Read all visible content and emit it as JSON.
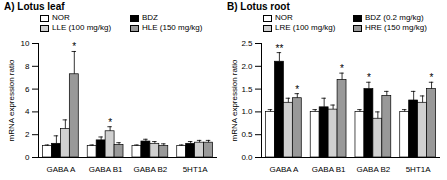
{
  "chart_data": [
    {
      "type": "bar",
      "title": "A) Lotus leaf",
      "y_label": "mRNA expression ratio",
      "categories": [
        "GABA A",
        "GABA B1",
        "GABA B2",
        "5HT1A"
      ],
      "series": [
        {
          "name": "NOR",
          "color": "#ffffff",
          "values": [
            1.0,
            1.0,
            1.0,
            1.0
          ],
          "errors": [
            0.1,
            0.1,
            0.1,
            0.1
          ]
        },
        {
          "name": "BDZ",
          "color": "#000000",
          "values": [
            1.2,
            1.5,
            1.4,
            1.2
          ],
          "errors": [
            0.7,
            0.3,
            0.2,
            0.2
          ]
        },
        {
          "name": "LLE (100 mg/kg)",
          "color": "#d0d0d0",
          "values": [
            2.5,
            2.3,
            1.2,
            1.3
          ],
          "errors": [
            0.8,
            0.4,
            0.2,
            0.2
          ]
        },
        {
          "name": "HLE (150 mg/kg)",
          "color": "#999999",
          "values": [
            7.3,
            1.1,
            1.0,
            1.3
          ],
          "errors": [
            2.0,
            0.2,
            0.2,
            0.2
          ]
        }
      ],
      "annotations": [
        {
          "text": "*",
          "category": "GABA A",
          "series": "HLE (150 mg/kg)"
        },
        {
          "text": "*",
          "category": "GABA B1",
          "series": "LLE (100 mg/kg)"
        }
      ],
      "ylim": [
        0,
        10
      ],
      "yticks": [
        0,
        2,
        4,
        6,
        8,
        10
      ],
      "legend": "top"
    },
    {
      "type": "bar",
      "title": "B) Lotus root",
      "y_label": "mRNA expression ratio",
      "categories": [
        "GABA A",
        "GABA B1",
        "GABA B2",
        "5HT1A"
      ],
      "series": [
        {
          "name": "NOR",
          "color": "#ffffff",
          "values": [
            1.0,
            1.0,
            1.0,
            1.0
          ],
          "errors": [
            0.05,
            0.05,
            0.05,
            0.05
          ]
        },
        {
          "name": "BDZ (0.2 mg/kg)",
          "color": "#000000",
          "values": [
            2.1,
            1.1,
            1.5,
            1.25
          ],
          "errors": [
            0.2,
            0.2,
            0.15,
            0.2
          ]
        },
        {
          "name": "LRE (100 mg/kg)",
          "color": "#d0d0d0",
          "values": [
            1.2,
            1.05,
            0.85,
            1.2
          ],
          "errors": [
            0.1,
            0.1,
            0.15,
            0.15
          ]
        },
        {
          "name": "HRE (150 mg/kg)",
          "color": "#999999",
          "values": [
            1.3,
            1.7,
            1.35,
            1.5
          ],
          "errors": [
            0.1,
            0.15,
            0.1,
            0.15
          ]
        }
      ],
      "annotations": [
        {
          "text": "**",
          "category": "GABA A",
          "series": "BDZ (0.2 mg/kg)"
        },
        {
          "text": "*",
          "category": "GABA A",
          "series": "HRE (150 mg/kg)"
        },
        {
          "text": "*",
          "category": "GABA B1",
          "series": "HRE (150 mg/kg)"
        },
        {
          "text": "*",
          "category": "GABA B2",
          "series": "BDZ (0.2 mg/kg)"
        },
        {
          "text": "*",
          "category": "5HT1A",
          "series": "HRE (150 mg/kg)"
        }
      ],
      "ylim": [
        0,
        2.5
      ],
      "yticks": [
        {
          "value": 0,
          "label": "0.0"
        },
        0.5,
        {
          "value": 1,
          "label": "1.0"
        },
        1.5,
        {
          "value": 2,
          "label": "2.0"
        },
        2.5
      ],
      "legend": "top"
    }
  ]
}
